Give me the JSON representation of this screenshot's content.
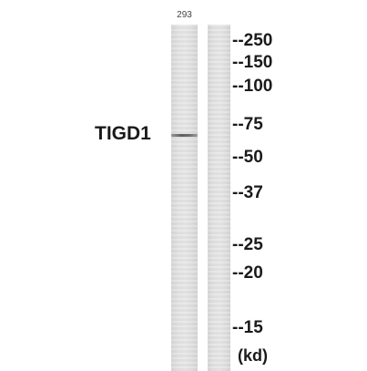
{
  "blot": {
    "lane_label": "293",
    "protein": "TIGD1",
    "unit": "(kd)",
    "markers": [
      {
        "label": "--250",
        "kda": 250
      },
      {
        "label": "--150",
        "kda": 150
      },
      {
        "label": "--100",
        "kda": 100
      },
      {
        "label": "--75",
        "kda": 75
      },
      {
        "label": "--50",
        "kda": 50
      },
      {
        "label": "--37",
        "kda": 37
      },
      {
        "label": "--25",
        "kda": 25
      },
      {
        "label": "--20",
        "kda": 20
      },
      {
        "label": "--15",
        "kda": 15
      }
    ],
    "colors": {
      "lane": "#e4e4e4",
      "band": "#555555",
      "text": "#1a1a1a"
    }
  }
}
